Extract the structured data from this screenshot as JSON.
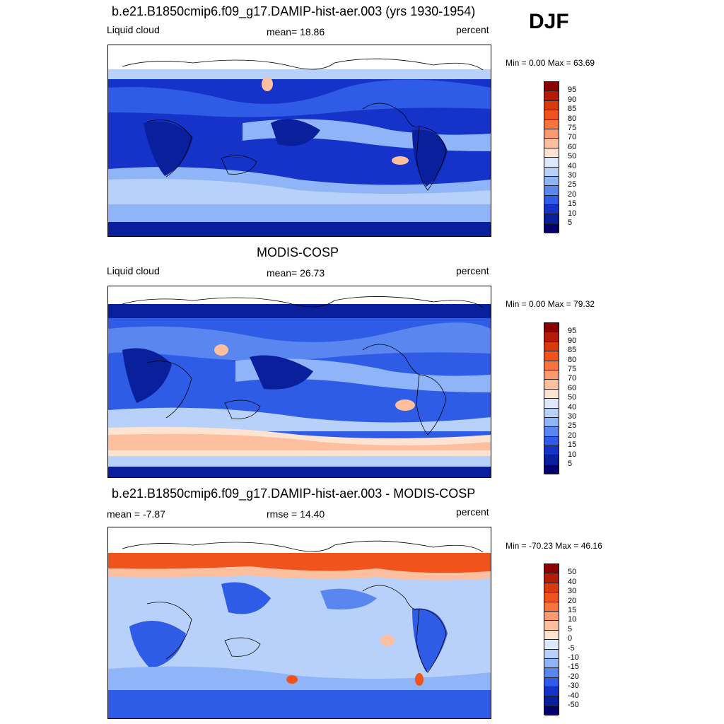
{
  "season": "DJF",
  "panels": [
    {
      "title": "b.e21.B1850cmip6.f09_g17.DAMIP-hist-aer.003 (yrs 1930-1954)",
      "left_label": "Liquid cloud",
      "center_label": "mean=  18.86",
      "right_label": "percent",
      "minmax": "Min =   0.00 Max =  63.69",
      "colorbar": {
        "labels": [
          "95",
          "90",
          "85",
          "80",
          "75",
          "70",
          "60",
          "50",
          "40",
          "30",
          "25",
          "20",
          "15",
          "10",
          "5"
        ],
        "colors": [
          "#8b0000",
          "#b51c08",
          "#d83a0e",
          "#f0541c",
          "#f7743f",
          "#fb9a6f",
          "#fdbf9e",
          "#fde3d1",
          "#dde9fb",
          "#b8d1fa",
          "#8fb4f7",
          "#5a86f0",
          "#2f5ce6",
          "#1533c9",
          "#0a1f9c",
          "#04006e"
        ]
      }
    },
    {
      "title": "MODIS-COSP",
      "left_label": "Liquid cloud",
      "center_label": "mean=  26.73",
      "right_label": "percent",
      "minmax": "Min =   0.00 Max =  79.32",
      "colorbar": {
        "labels": [
          "95",
          "90",
          "85",
          "80",
          "75",
          "70",
          "60",
          "50",
          "40",
          "30",
          "25",
          "20",
          "15",
          "10",
          "5"
        ],
        "colors": [
          "#8b0000",
          "#b51c08",
          "#d83a0e",
          "#f0541c",
          "#f7743f",
          "#fb9a6f",
          "#fdbf9e",
          "#fde3d1",
          "#dde9fb",
          "#b8d1fa",
          "#8fb4f7",
          "#5a86f0",
          "#2f5ce6",
          "#1533c9",
          "#0a1f9c",
          "#04006e"
        ]
      }
    },
    {
      "title": "b.e21.B1850cmip6.f09_g17.DAMIP-hist-aer.003 - MODIS-COSP",
      "left_label": "mean =  -7.87",
      "center_label": "rmse =  14.40",
      "right_label": "percent",
      "minmax": "Min = -70.23 Max =  46.16",
      "colorbar": {
        "labels": [
          "50",
          "40",
          "30",
          "20",
          "15",
          "10",
          "5",
          "0",
          "-5",
          "-10",
          "-15",
          "-20",
          "-30",
          "-40",
          "-50"
        ],
        "colors": [
          "#8b0000",
          "#b51c08",
          "#d83a0e",
          "#f0541c",
          "#f7743f",
          "#fb9a6f",
          "#fdbf9e",
          "#fde3d1",
          "#dde9fb",
          "#b8d1fa",
          "#8fb4f7",
          "#5a86f0",
          "#2f5ce6",
          "#1533c9",
          "#0a1f9c",
          "#04006e"
        ]
      }
    }
  ]
}
